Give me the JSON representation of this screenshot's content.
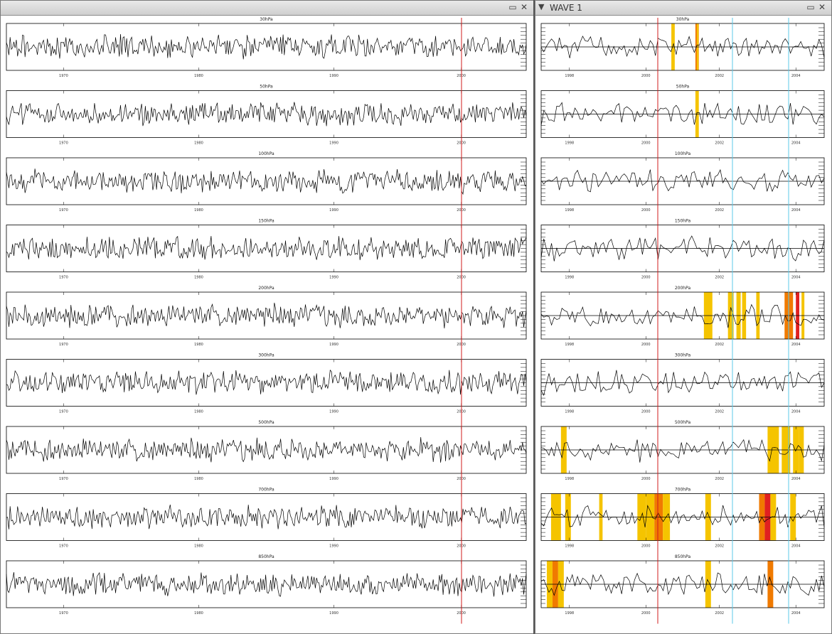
{
  "left_window": {
    "title": "",
    "restore_icon": "restore-icon",
    "close_icon": "close-icon"
  },
  "right_window": {
    "title": "WAVE 1",
    "collapse_icon": "chevron-down-icon",
    "restore_icon": "restore-icon",
    "close_icon": "close-icon"
  },
  "colors": {
    "marker_red": "#d21c1c",
    "marker_blue": "#5bc8e8",
    "band_yellow": "#f5c400",
    "band_orange": "#f07a00",
    "band_red": "#e02020",
    "trace": "#000000"
  },
  "left_panels": [
    {
      "label": "30hPa",
      "ticks": [
        "1970",
        "1980",
        "1990",
        "2000"
      ]
    },
    {
      "label": "50hPa",
      "ticks": [
        "1970",
        "1980",
        "1990",
        "2000"
      ]
    },
    {
      "label": "100hPa",
      "ticks": [
        "1970",
        "1980",
        "1990",
        "2000"
      ]
    },
    {
      "label": "150hPa",
      "ticks": [
        "1970",
        "1980",
        "1990",
        "2000"
      ]
    },
    {
      "label": "200hPa",
      "ticks": [
        "1970",
        "1980",
        "1990",
        "2000"
      ]
    },
    {
      "label": "300hPa",
      "ticks": [
        "1970",
        "1980",
        "1990",
        "2000"
      ]
    },
    {
      "label": "500hPa",
      "ticks": [
        "1970",
        "1980",
        "1990",
        "2000"
      ]
    },
    {
      "label": "700hPa",
      "ticks": [
        "1970",
        "1980",
        "1990",
        "2000"
      ]
    },
    {
      "label": "850hPa",
      "ticks": [
        "1970",
        "1980",
        "1990",
        "2000"
      ]
    }
  ],
  "right_panels": [
    {
      "label": "30hPa",
      "ticks": [
        "1998",
        "2000",
        "2002",
        "2004"
      ],
      "bands": [
        [
          0.46,
          "#f5c400",
          0.012
        ],
        [
          0.545,
          "#f07a00",
          0.012
        ],
        [
          0.55,
          "#f5c400",
          0.006
        ]
      ]
    },
    {
      "label": "50hPa",
      "ticks": [
        "1998",
        "2000",
        "2002",
        "2004"
      ],
      "bands": [
        [
          0.545,
          "#f5c400",
          0.012
        ]
      ]
    },
    {
      "label": "100hPa",
      "ticks": [
        "1998",
        "2000",
        "2002",
        "2004"
      ],
      "bands": []
    },
    {
      "label": "150hPa",
      "ticks": [
        "1998",
        "2000",
        "2002",
        "2004"
      ],
      "bands": []
    },
    {
      "label": "200hPa",
      "ticks": [
        "1998",
        "2000",
        "2002",
        "2004"
      ],
      "bands": [
        [
          0.575,
          "#f5c400",
          0.03
        ],
        [
          0.66,
          "#f5c400",
          0.02
        ],
        [
          0.69,
          "#f5c400",
          0.015
        ],
        [
          0.71,
          "#f5c400",
          0.014
        ],
        [
          0.76,
          "#f5c400",
          0.012
        ],
        [
          0.86,
          "#f07a00",
          0.03
        ],
        [
          0.9,
          "#e02020",
          0.012
        ],
        [
          0.92,
          "#f5c400",
          0.01
        ]
      ]
    },
    {
      "label": "300hPa",
      "ticks": [
        "1998",
        "2000",
        "2002",
        "2004"
      ],
      "bands": []
    },
    {
      "label": "500hPa",
      "ticks": [
        "1998",
        "2000",
        "2002",
        "2004"
      ],
      "bands": [
        [
          0.07,
          "#f5c400",
          0.02
        ],
        [
          0.8,
          "#f5c400",
          0.04
        ],
        [
          0.85,
          "#f5c400",
          0.03
        ],
        [
          0.89,
          "#f5c400",
          0.02
        ],
        [
          0.91,
          "#f5c400",
          0.018
        ]
      ]
    },
    {
      "label": "700hPa",
      "ticks": [
        "1998",
        "2000",
        "2002",
        "2004"
      ],
      "bands": [
        [
          0.035,
          "#f5c400",
          0.02
        ],
        [
          0.05,
          "#f5c400",
          0.02
        ],
        [
          0.085,
          "#f5c400",
          0.02
        ],
        [
          0.205,
          "#f5c400",
          0.012
        ],
        [
          0.34,
          "#f5c400",
          0.03
        ],
        [
          0.37,
          "#f5c400",
          0.03
        ],
        [
          0.4,
          "#f07a00",
          0.03
        ],
        [
          0.43,
          "#f5c400",
          0.025
        ],
        [
          0.58,
          "#f5c400",
          0.02
        ],
        [
          0.77,
          "#f07a00",
          0.02
        ],
        [
          0.79,
          "#e02020",
          0.02
        ],
        [
          0.81,
          "#f5c400",
          0.02
        ],
        [
          0.88,
          "#f5c400",
          0.02
        ]
      ]
    },
    {
      "label": "850hPa",
      "ticks": [
        "1998",
        "2000",
        "2002",
        "2004"
      ],
      "bands": [
        [
          0.02,
          "#f5c400",
          0.02
        ],
        [
          0.04,
          "#f07a00",
          0.02
        ],
        [
          0.06,
          "#f5c400",
          0.02
        ],
        [
          0.58,
          "#f5c400",
          0.02
        ],
        [
          0.8,
          "#f07a00",
          0.02
        ]
      ]
    }
  ]
}
